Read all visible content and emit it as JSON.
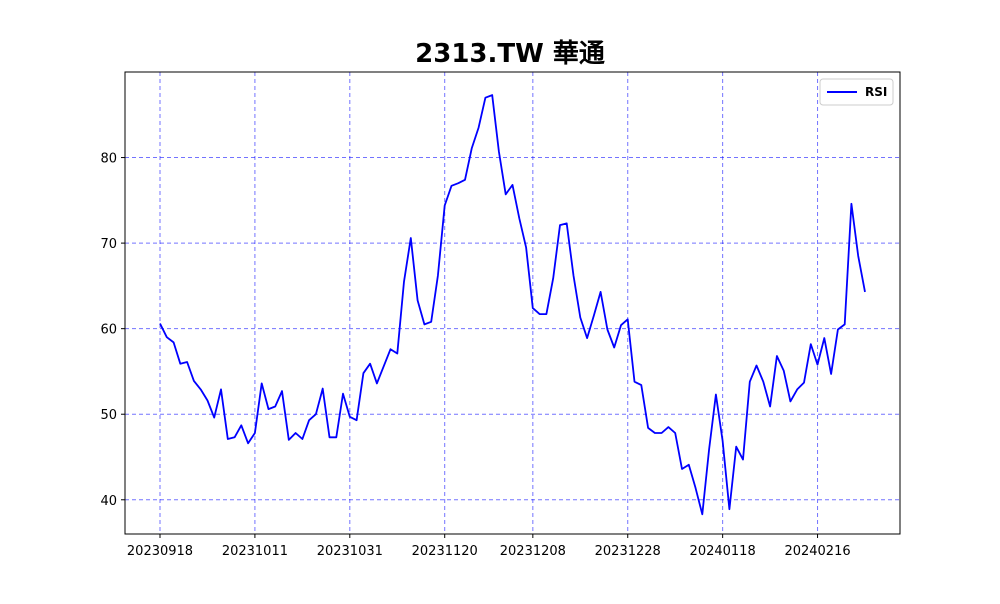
{
  "chart_data": {
    "type": "line",
    "title": "2313.TW 華通",
    "xlabel": "",
    "ylabel": "",
    "x_tick_labels": [
      "20230918",
      "20231011",
      "20231031",
      "20231120",
      "20231208",
      "20231228",
      "20240118",
      "20240216"
    ],
    "y_ticks": [
      40,
      50,
      60,
      70,
      80
    ],
    "ylim": [
      36,
      90
    ],
    "grid": true,
    "legend": "top-right",
    "series": [
      {
        "name": "RSI",
        "color": "#0000ff",
        "values": [
          60.6,
          59.0,
          58.4,
          55.9,
          56.1,
          53.9,
          52.9,
          51.6,
          49.6,
          52.9,
          47.1,
          47.3,
          48.7,
          46.6,
          47.8,
          53.6,
          50.6,
          50.9,
          52.7,
          47.0,
          47.8,
          47.1,
          49.3,
          50.0,
          53.0,
          47.3,
          47.3,
          52.4,
          49.7,
          49.3,
          54.8,
          55.9,
          53.6,
          55.6,
          57.6,
          57.1,
          65.5,
          70.6,
          63.3,
          60.5,
          60.8,
          66.2,
          74.4,
          76.7,
          77.0,
          77.4,
          81.1,
          83.5,
          87.0,
          87.3,
          80.7,
          75.7,
          76.8,
          72.9,
          69.5,
          62.4,
          61.7,
          61.7,
          65.9,
          72.1,
          72.3,
          66.2,
          61.3,
          58.9,
          61.5,
          64.3,
          59.9,
          57.8,
          60.4,
          61.1,
          53.8,
          53.4,
          48.4,
          47.8,
          47.8,
          48.5,
          47.8,
          43.6,
          44.1,
          41.4,
          38.3,
          45.9,
          52.3,
          46.9,
          38.9,
          46.2,
          44.7,
          53.8,
          55.7,
          53.8,
          50.9,
          56.8,
          55.1,
          51.5,
          52.9,
          53.7,
          58.2,
          55.8,
          58.9,
          54.7,
          59.9,
          60.5,
          74.6,
          68.5,
          64.3
        ]
      }
    ]
  }
}
